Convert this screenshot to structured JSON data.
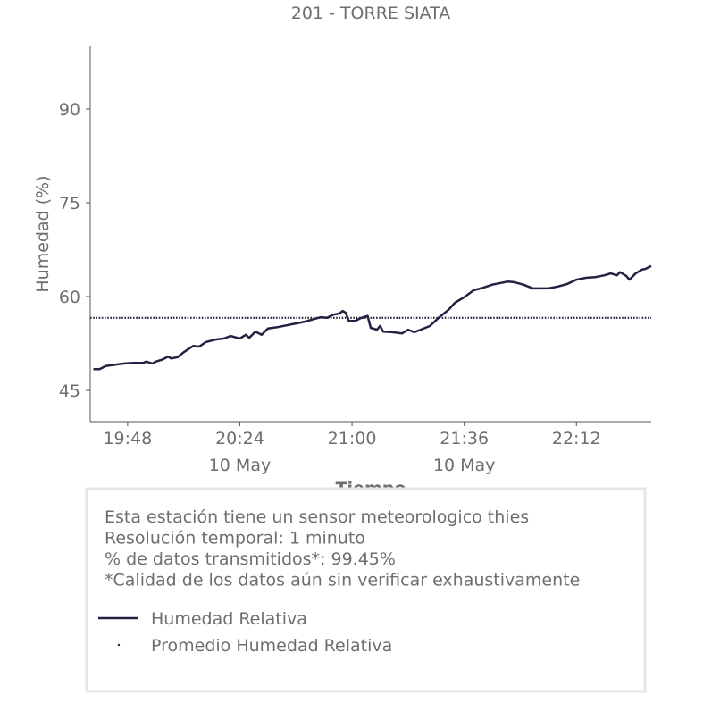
{
  "chart_data": {
    "type": "line",
    "title": "201 - TORRE SIATA",
    "y_label": "Humedad (%)",
    "x_label": "Tiempo",
    "xlim": [
      "19:36",
      "22:36"
    ],
    "ylim": [
      40,
      100
    ],
    "yticks": [
      45,
      60,
      75,
      90
    ],
    "xticks": [
      "19:48",
      {
        "value": "20:24",
        "label": "20:24",
        "date": "10 May"
      },
      "21:00",
      {
        "value": "21:36",
        "label": "21:36",
        "date": "10 May"
      },
      "22:12"
    ],
    "x": [
      "19:37",
      "19:39",
      "19:41",
      "19:44",
      "19:47",
      "19:50",
      "19:53",
      "19:54",
      "19:56",
      "19:57",
      "19:59",
      "20:01",
      "20:02",
      "20:04",
      "20:06",
      "20:09",
      "20:11",
      "20:13",
      "20:16",
      "20:19",
      "20:21",
      "20:24",
      "20:26",
      "20:27",
      "20:29",
      "20:31",
      "20:33",
      "20:36",
      "20:39",
      "20:42",
      "20:45",
      "20:47",
      "20:50",
      "20:52",
      "20:54",
      "20:56",
      "20:57",
      "20:58",
      "20:59",
      "21:01",
      "21:03",
      "21:05",
      "21:06",
      "21:08",
      "21:09",
      "21:10",
      "21:13",
      "21:16",
      "21:18",
      "21:20",
      "21:22",
      "21:25",
      "21:28",
      "21:31",
      "21:33",
      "21:36",
      "21:39",
      "21:42",
      "21:45",
      "21:47",
      "21:50",
      "21:52",
      "21:55",
      "21:58",
      "22:01",
      "22:03",
      "22:06",
      "22:09",
      "22:12",
      "22:15",
      "22:18",
      "22:21",
      "22:23",
      "22:25",
      "22:26",
      "22:28",
      "22:29",
      "22:31",
      "22:33",
      "22:34",
      "22:36"
    ],
    "series": [
      {
        "name": "Humedad Relativa",
        "color": "#222243",
        "values": [
          48.4,
          48.4,
          48.9,
          49.1,
          49.3,
          49.4,
          49.4,
          49.6,
          49.3,
          49.6,
          49.9,
          50.4,
          50.1,
          50.3,
          51.1,
          52.1,
          52.0,
          52.7,
          53.1,
          53.3,
          53.7,
          53.3,
          53.9,
          53.4,
          54.4,
          53.9,
          54.9,
          55.1,
          55.4,
          55.7,
          56.0,
          56.3,
          56.7,
          56.6,
          57.1,
          57.3,
          57.7,
          57.4,
          56.1,
          56.1,
          56.6,
          56.9,
          55.0,
          54.7,
          55.3,
          54.4,
          54.3,
          54.1,
          54.7,
          54.3,
          54.7,
          55.3,
          56.7,
          57.9,
          59.0,
          59.9,
          61.0,
          61.4,
          61.9,
          62.1,
          62.4,
          62.3,
          61.9,
          61.3,
          61.3,
          61.3,
          61.6,
          62.0,
          62.7,
          63.0,
          63.1,
          63.4,
          63.7,
          63.4,
          63.9,
          63.3,
          62.7,
          63.7,
          64.3,
          64.4,
          64.9
        ]
      },
      {
        "name": "Promedio Humedad Relativa",
        "color": "#222243",
        "value": 56.6
      }
    ],
    "info": [
      "Esta estación tiene un sensor meteorologico thies",
      "Resolución temporal: 1 minuto",
      "% de datos transmitidos*: 99.45%",
      "*Calidad de los datos aún sin verificar exhaustivamente"
    ]
  }
}
